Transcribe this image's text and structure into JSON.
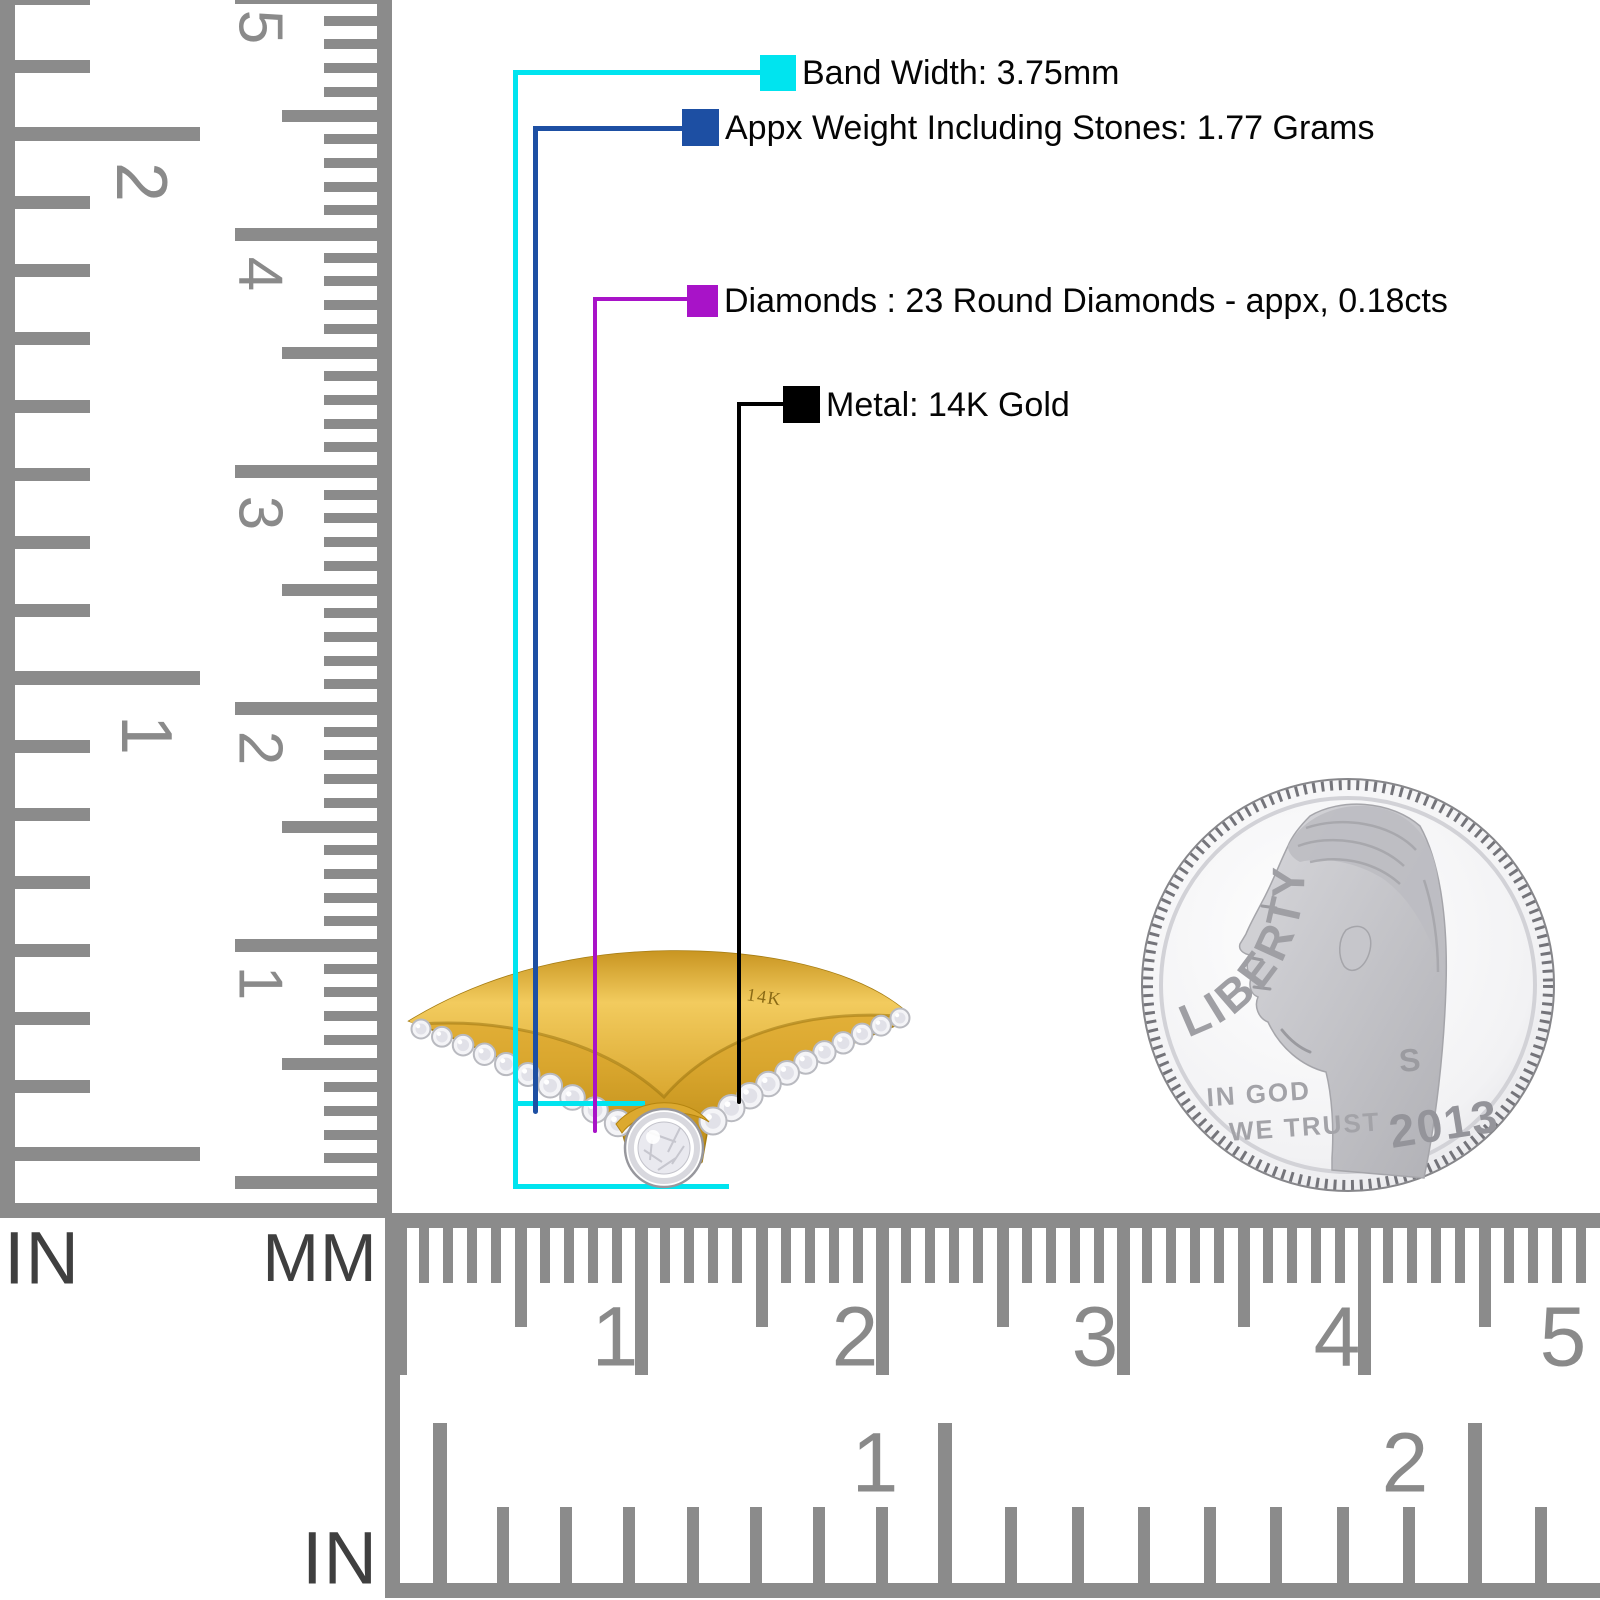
{
  "annotations": {
    "band_width": {
      "label": "Band Width: 3.75mm",
      "color": "#00e4ef"
    },
    "weight": {
      "label": "Appx Weight Including Stones: 1.77 Grams",
      "color": "#1d4fa3"
    },
    "diamonds": {
      "label": "Diamonds : 23 Round Diamonds - appx, 0.18cts",
      "color": "#a813c8"
    },
    "metal": {
      "label": "Metal: 14K Gold",
      "color": "#000000"
    }
  },
  "ring": {
    "stamp": "14K",
    "total_stones": 23,
    "arm_stones_each_side": 11
  },
  "coin": {
    "legend": "LIBERTY",
    "motto_line1": "IN GOD",
    "motto_line2": "WE TRUST",
    "year": "2013",
    "mint_mark": "S"
  },
  "rulers": {
    "left_vertical": {
      "unit_left": "IN",
      "unit_right": "MM",
      "in_numbers": [
        "2",
        "1"
      ],
      "mm_numbers": [
        "5",
        "4",
        "3",
        "2",
        "1"
      ]
    },
    "bottom_horizontal": {
      "unit_label": "IN",
      "mm_numbers": [
        "1",
        "2",
        "3",
        "4",
        "5"
      ],
      "in_numbers": [
        "1",
        "2"
      ]
    }
  },
  "colors": {
    "ruler_gray": "#8b8b8b",
    "label_gray": "#3f3f3f",
    "gold_light": "#f2cb5e",
    "gold_mid": "#d9a62e",
    "gold_dark": "#b4840f",
    "silver": "#c9c9cd"
  }
}
